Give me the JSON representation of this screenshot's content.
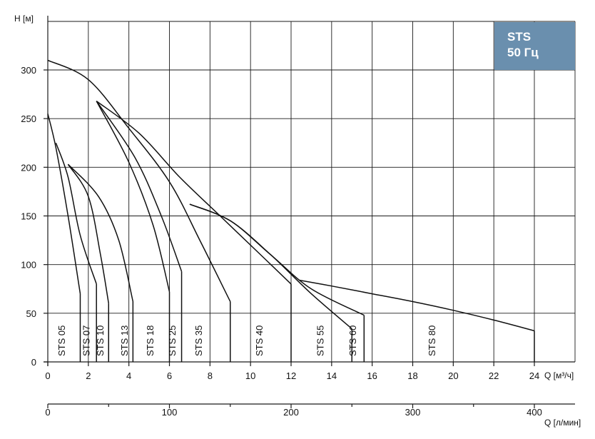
{
  "chart_data": {
    "type": "line",
    "ylabel": "H [м]",
    "xlabel": "Q [м³/ч]",
    "xlabel2": "Q [л/мин]",
    "xlim": [
      0,
      24
    ],
    "ylim": [
      0,
      320
    ],
    "x_ticks": [
      "0",
      "2",
      "4",
      "6",
      "8",
      "10",
      "12",
      "14",
      "16",
      "18",
      "20",
      "22",
      "24"
    ],
    "y_ticks": [
      "0",
      "50",
      "100",
      "150",
      "200",
      "250",
      "300"
    ],
    "x2_ticks": [
      "0",
      "100",
      "200",
      "300",
      "400"
    ],
    "x2_values": [
      0,
      100,
      200,
      300,
      400
    ],
    "grid": true,
    "badge": {
      "line1": "STS",
      "line2": "50 Гц"
    },
    "series": [
      {
        "name": "STS 05",
        "label_x": 0.85,
        "x": [
          0,
          0.4,
          1.0,
          1.6
        ],
        "y": [
          255,
          220,
          150,
          70
        ]
      },
      {
        "name": "STS 07",
        "label_x": 2.05,
        "x": [
          0.4,
          1.0,
          1.6,
          2.4
        ],
        "y": [
          225,
          190,
          130,
          80
        ]
      },
      {
        "name": "STS 10",
        "label_x": 2.75,
        "x": [
          1.0,
          2.0,
          2.6,
          3.0
        ],
        "y": [
          203,
          170,
          110,
          60
        ]
      },
      {
        "name": "STS 13",
        "label_x": 3.95,
        "x": [
          1.0,
          2.5,
          3.5,
          4.2
        ],
        "y": [
          203,
          170,
          125,
          62
        ]
      },
      {
        "name": "STS 18",
        "label_x": 5.2,
        "x": [
          2.4,
          4.0,
          5.2,
          6.0
        ],
        "y": [
          268,
          205,
          140,
          72
        ]
      },
      {
        "name": "STS 25",
        "label_x": 6.3,
        "x": [
          2.4,
          4.3,
          5.6,
          6.6
        ],
        "y": [
          268,
          210,
          150,
          93
        ]
      },
      {
        "name": "STS 35",
        "label_x": 7.6,
        "x": [
          0,
          2.0,
          4.0,
          6.0,
          7.5,
          9.0
        ],
        "y": [
          310,
          290,
          240,
          185,
          125,
          62
        ]
      },
      {
        "name": "STS 40",
        "label_x": 10.6,
        "x": [
          2.4,
          4.5,
          6.5,
          8.5,
          10.5,
          12.0
        ],
        "y": [
          268,
          235,
          190,
          150,
          110,
          80
        ]
      },
      {
        "name": "STS 55",
        "label_x": 13.6,
        "x": [
          7.0,
          9.0,
          11.0,
          13.0,
          15.0
        ],
        "y": [
          162,
          145,
          110,
          70,
          34
        ]
      },
      {
        "name": "STS 60",
        "label_x": 15.2,
        "x": [
          7.0,
          9.0,
          11.0,
          13.0,
          15.6
        ],
        "y": [
          162,
          145,
          110,
          75,
          48
        ]
      },
      {
        "name": "STS 80",
        "label_x": 19.1,
        "x": [
          12.4,
          14.0,
          16.0,
          18.0,
          20.0,
          22.0,
          24.0
        ],
        "y": [
          84,
          78,
          70,
          62,
          53,
          43,
          32
        ]
      }
    ]
  }
}
